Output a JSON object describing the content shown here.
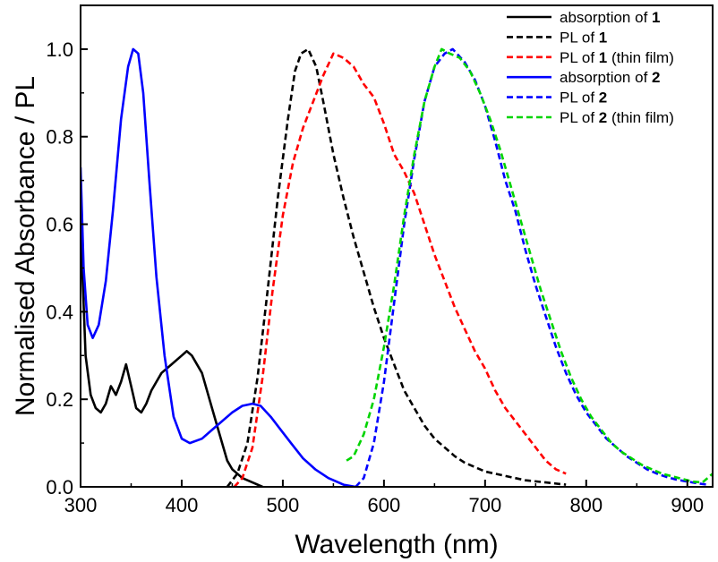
{
  "chart_data": {
    "type": "line",
    "xlabel": "Wavelength (nm)",
    "ylabel": "Normalised Absorbance / PL",
    "xlim": [
      300,
      925
    ],
    "ylim": [
      0,
      1.1
    ],
    "x_ticks": [
      "300",
      "400",
      "500",
      "600",
      "700",
      "800",
      "900"
    ],
    "y_ticks": [
      "0.0",
      "0.2",
      "0.4",
      "0.6",
      "0.8",
      "1.0"
    ],
    "grid": false,
    "legend_position": "top-right",
    "series": [
      {
        "name": "absorption of 1",
        "label_prefix": "absorption of ",
        "label_compound": "1",
        "label_suffix": "",
        "color": "#000000",
        "dash": "solid",
        "points": [
          [
            300,
            0.6
          ],
          [
            305,
            0.3
          ],
          [
            310,
            0.21
          ],
          [
            315,
            0.18
          ],
          [
            320,
            0.17
          ],
          [
            325,
            0.19
          ],
          [
            330,
            0.23
          ],
          [
            335,
            0.21
          ],
          [
            340,
            0.24
          ],
          [
            345,
            0.28
          ],
          [
            350,
            0.23
          ],
          [
            355,
            0.18
          ],
          [
            360,
            0.17
          ],
          [
            365,
            0.19
          ],
          [
            370,
            0.22
          ],
          [
            380,
            0.26
          ],
          [
            390,
            0.28
          ],
          [
            400,
            0.3
          ],
          [
            405,
            0.31
          ],
          [
            410,
            0.3
          ],
          [
            420,
            0.26
          ],
          [
            430,
            0.18
          ],
          [
            440,
            0.1
          ],
          [
            445,
            0.06
          ],
          [
            450,
            0.04
          ],
          [
            455,
            0.03
          ],
          [
            460,
            0.02
          ],
          [
            470,
            0.01
          ],
          [
            480,
            0.0
          ]
        ]
      },
      {
        "name": "PL of 1",
        "label_prefix": "PL of ",
        "label_compound": "1",
        "label_suffix": "",
        "color": "#000000",
        "dash": "dashed",
        "points": [
          [
            445,
            0.0
          ],
          [
            455,
            0.03
          ],
          [
            465,
            0.1
          ],
          [
            475,
            0.25
          ],
          [
            485,
            0.45
          ],
          [
            495,
            0.66
          ],
          [
            505,
            0.84
          ],
          [
            512,
            0.95
          ],
          [
            518,
            0.99
          ],
          [
            525,
            1.0
          ],
          [
            533,
            0.96
          ],
          [
            540,
            0.88
          ],
          [
            550,
            0.76
          ],
          [
            560,
            0.66
          ],
          [
            570,
            0.57
          ],
          [
            580,
            0.49
          ],
          [
            590,
            0.41
          ],
          [
            600,
            0.34
          ],
          [
            610,
            0.28
          ],
          [
            620,
            0.22
          ],
          [
            630,
            0.18
          ],
          [
            640,
            0.14
          ],
          [
            650,
            0.11
          ],
          [
            660,
            0.09
          ],
          [
            670,
            0.07
          ],
          [
            680,
            0.055
          ],
          [
            690,
            0.045
          ],
          [
            700,
            0.035
          ],
          [
            720,
            0.025
          ],
          [
            740,
            0.015
          ],
          [
            760,
            0.01
          ],
          [
            780,
            0.005
          ]
        ]
      },
      {
        "name": "PL of 1 (thin film)",
        "label_prefix": "PL of ",
        "label_compound": "1",
        "label_suffix": " (thin film)",
        "color": "#ff0000",
        "dash": "dashed",
        "points": [
          [
            452,
            0.0
          ],
          [
            460,
            0.02
          ],
          [
            470,
            0.09
          ],
          [
            480,
            0.25
          ],
          [
            490,
            0.45
          ],
          [
            500,
            0.62
          ],
          [
            510,
            0.74
          ],
          [
            520,
            0.82
          ],
          [
            530,
            0.88
          ],
          [
            540,
            0.94
          ],
          [
            550,
            0.99
          ],
          [
            560,
            0.98
          ],
          [
            570,
            0.96
          ],
          [
            580,
            0.92
          ],
          [
            590,
            0.89
          ],
          [
            600,
            0.83
          ],
          [
            610,
            0.76
          ],
          [
            620,
            0.72
          ],
          [
            630,
            0.67
          ],
          [
            640,
            0.6
          ],
          [
            650,
            0.53
          ],
          [
            660,
            0.47
          ],
          [
            670,
            0.41
          ],
          [
            680,
            0.36
          ],
          [
            690,
            0.31
          ],
          [
            700,
            0.27
          ],
          [
            710,
            0.22
          ],
          [
            720,
            0.18
          ],
          [
            730,
            0.15
          ],
          [
            740,
            0.12
          ],
          [
            750,
            0.09
          ],
          [
            760,
            0.06
          ],
          [
            770,
            0.04
          ],
          [
            780,
            0.03
          ]
        ]
      },
      {
        "name": "absorption of 2",
        "label_prefix": "absorption of ",
        "label_compound": "2",
        "label_suffix": "",
        "color": "#0000ff",
        "dash": "solid",
        "points": [
          [
            300,
            0.73
          ],
          [
            303,
            0.5
          ],
          [
            307,
            0.37
          ],
          [
            312,
            0.34
          ],
          [
            318,
            0.37
          ],
          [
            325,
            0.47
          ],
          [
            332,
            0.63
          ],
          [
            340,
            0.84
          ],
          [
            347,
            0.96
          ],
          [
            352,
            1.0
          ],
          [
            357,
            0.99
          ],
          [
            362,
            0.9
          ],
          [
            368,
            0.7
          ],
          [
            375,
            0.48
          ],
          [
            383,
            0.3
          ],
          [
            392,
            0.16
          ],
          [
            400,
            0.11
          ],
          [
            408,
            0.1
          ],
          [
            420,
            0.11
          ],
          [
            430,
            0.13
          ],
          [
            440,
            0.15
          ],
          [
            450,
            0.17
          ],
          [
            460,
            0.185
          ],
          [
            470,
            0.19
          ],
          [
            478,
            0.185
          ],
          [
            488,
            0.16
          ],
          [
            498,
            0.13
          ],
          [
            508,
            0.1
          ],
          [
            520,
            0.065
          ],
          [
            532,
            0.04
          ],
          [
            545,
            0.02
          ],
          [
            560,
            0.005
          ],
          [
            572,
            0.0
          ]
        ]
      },
      {
        "name": "PL of 2",
        "label_prefix": "PL of ",
        "label_compound": "2",
        "label_suffix": "",
        "color": "#0000ff",
        "dash": "dashed",
        "points": [
          [
            572,
            0.0
          ],
          [
            580,
            0.02
          ],
          [
            590,
            0.1
          ],
          [
            600,
            0.24
          ],
          [
            610,
            0.42
          ],
          [
            620,
            0.6
          ],
          [
            630,
            0.75
          ],
          [
            640,
            0.88
          ],
          [
            650,
            0.96
          ],
          [
            660,
            0.99
          ],
          [
            668,
            1.0
          ],
          [
            680,
            0.97
          ],
          [
            690,
            0.93
          ],
          [
            700,
            0.87
          ],
          [
            710,
            0.79
          ],
          [
            720,
            0.7
          ],
          [
            730,
            0.63
          ],
          [
            740,
            0.54
          ],
          [
            750,
            0.46
          ],
          [
            760,
            0.39
          ],
          [
            770,
            0.32
          ],
          [
            780,
            0.26
          ],
          [
            790,
            0.21
          ],
          [
            800,
            0.17
          ],
          [
            810,
            0.14
          ],
          [
            820,
            0.11
          ],
          [
            830,
            0.09
          ],
          [
            840,
            0.07
          ],
          [
            850,
            0.055
          ],
          [
            860,
            0.04
          ],
          [
            870,
            0.03
          ],
          [
            880,
            0.022
          ],
          [
            890,
            0.016
          ],
          [
            900,
            0.012
          ],
          [
            910,
            0.008
          ],
          [
            920,
            0.005
          ]
        ]
      },
      {
        "name": "PL of 2 (thin film)",
        "label_prefix": "PL of ",
        "label_compound": "2",
        "label_suffix": " (thin film)",
        "color": "#00d400",
        "dash": "dashed",
        "points": [
          [
            563,
            0.06
          ],
          [
            570,
            0.07
          ],
          [
            580,
            0.12
          ],
          [
            590,
            0.2
          ],
          [
            600,
            0.32
          ],
          [
            610,
            0.46
          ],
          [
            620,
            0.62
          ],
          [
            630,
            0.76
          ],
          [
            640,
            0.88
          ],
          [
            650,
            0.96
          ],
          [
            657,
            1.0
          ],
          [
            665,
            0.99
          ],
          [
            675,
            0.98
          ],
          [
            685,
            0.95
          ],
          [
            695,
            0.9
          ],
          [
            705,
            0.84
          ],
          [
            715,
            0.77
          ],
          [
            725,
            0.69
          ],
          [
            735,
            0.61
          ],
          [
            745,
            0.53
          ],
          [
            755,
            0.45
          ],
          [
            765,
            0.38
          ],
          [
            775,
            0.31
          ],
          [
            785,
            0.25
          ],
          [
            795,
            0.2
          ],
          [
            805,
            0.16
          ],
          [
            815,
            0.13
          ],
          [
            825,
            0.1
          ],
          [
            835,
            0.08
          ],
          [
            845,
            0.065
          ],
          [
            855,
            0.05
          ],
          [
            865,
            0.04
          ],
          [
            875,
            0.03
          ],
          [
            885,
            0.024
          ],
          [
            895,
            0.018
          ],
          [
            905,
            0.012
          ],
          [
            915,
            0.01
          ],
          [
            925,
            0.03
          ]
        ]
      }
    ]
  }
}
